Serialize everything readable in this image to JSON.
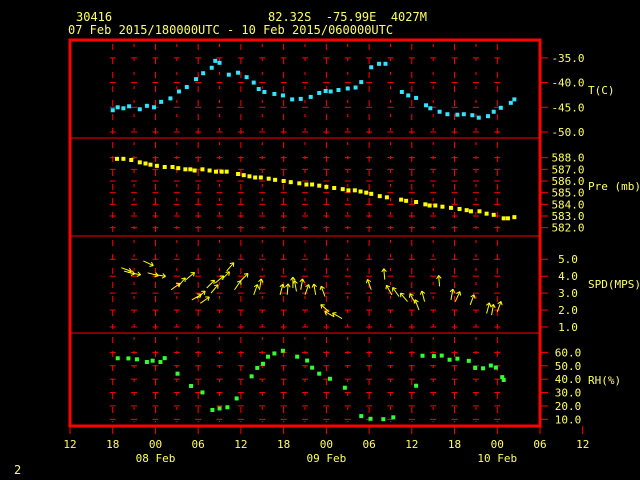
{
  "header": {
    "station": "30416",
    "location": "82.32S  -75.99E  4027M",
    "period": "07 Feb 2015/180000UTC - 10 Feb 2015/060000UTC"
  },
  "footer": {
    "page_number": "2"
  },
  "colors": {
    "frame": "#ff0000",
    "grid": "#ff0000",
    "text": "#ffff66",
    "temperature": "#33e5ff",
    "pressure": "#ffff00",
    "wind": "#ffff00",
    "humidity": "#33ff33"
  },
  "chart_data": {
    "type": "scatter",
    "x_unit": "hours since 07 Feb 2015 12 UTC",
    "x_range": [
      0,
      66
    ],
    "x_tick_labels": [
      "12",
      "18",
      "00",
      "06",
      "12",
      "18",
      "00",
      "06",
      "12",
      "18",
      "00",
      "06",
      "12"
    ],
    "date_labels": [
      "08 Feb",
      "09 Feb",
      "10 Feb"
    ],
    "panels": [
      {
        "id": "temperature",
        "label": "T(C)",
        "ylim": [
          -50,
          -33
        ],
        "ticks": [
          "-35.0",
          "-40.0",
          "-45.0",
          "-50.0"
        ],
        "series": [
          {
            "x": 6.0,
            "y": -45.6
          },
          {
            "x": 6.7,
            "y": -45.0
          },
          {
            "x": 7.5,
            "y": -45.2
          },
          {
            "x": 8.3,
            "y": -44.8
          },
          {
            "x": 9.8,
            "y": -45.4
          },
          {
            "x": 10.8,
            "y": -44.7
          },
          {
            "x": 11.8,
            "y": -45.0
          },
          {
            "x": 12.8,
            "y": -43.9
          },
          {
            "x": 14.1,
            "y": -43.2
          },
          {
            "x": 15.3,
            "y": -41.8
          },
          {
            "x": 16.4,
            "y": -40.9
          },
          {
            "x": 17.7,
            "y": -39.3
          },
          {
            "x": 18.7,
            "y": -38.1
          },
          {
            "x": 19.9,
            "y": -37.0
          },
          {
            "x": 20.4,
            "y": -35.6
          },
          {
            "x": 21.0,
            "y": -36.0
          },
          {
            "x": 22.3,
            "y": -38.4
          },
          {
            "x": 23.6,
            "y": -38.0
          },
          {
            "x": 24.8,
            "y": -38.9
          },
          {
            "x": 25.8,
            "y": -40.0
          },
          {
            "x": 26.5,
            "y": -41.3
          },
          {
            "x": 27.3,
            "y": -41.9
          },
          {
            "x": 28.7,
            "y": -42.3
          },
          {
            "x": 29.9,
            "y": -42.6
          },
          {
            "x": 31.2,
            "y": -43.4
          },
          {
            "x": 32.4,
            "y": -43.3
          },
          {
            "x": 33.8,
            "y": -42.9
          },
          {
            "x": 35.0,
            "y": -42.1
          },
          {
            "x": 35.9,
            "y": -41.7
          },
          {
            "x": 36.6,
            "y": -41.8
          },
          {
            "x": 37.7,
            "y": -41.5
          },
          {
            "x": 39.0,
            "y": -41.2
          },
          {
            "x": 40.1,
            "y": -41.0
          },
          {
            "x": 40.9,
            "y": -39.9
          },
          {
            "x": 42.3,
            "y": -36.9
          },
          {
            "x": 43.4,
            "y": -36.2
          },
          {
            "x": 44.3,
            "y": -36.2
          },
          {
            "x": 46.6,
            "y": -41.9
          },
          {
            "x": 47.5,
            "y": -42.6
          },
          {
            "x": 48.6,
            "y": -43.1
          },
          {
            "x": 50.0,
            "y": -44.6
          },
          {
            "x": 50.6,
            "y": -45.2
          },
          {
            "x": 51.9,
            "y": -45.9
          },
          {
            "x": 53.0,
            "y": -46.4
          },
          {
            "x": 54.4,
            "y": -46.5
          },
          {
            "x": 55.3,
            "y": -46.4
          },
          {
            "x": 56.5,
            "y": -46.6
          },
          {
            "x": 57.4,
            "y": -47.1
          },
          {
            "x": 58.7,
            "y": -46.8
          },
          {
            "x": 59.5,
            "y": -45.9
          },
          {
            "x": 60.5,
            "y": -45.1
          },
          {
            "x": 61.9,
            "y": -44.1
          },
          {
            "x": 62.4,
            "y": -43.4
          }
        ]
      },
      {
        "id": "pressure",
        "label": "Pre (mb)",
        "ylim": [
          581.8,
          589.0
        ],
        "ticks": [
          "588.0",
          "587.0",
          "586.0",
          "585.0",
          "584.0",
          "583.0",
          "582.0"
        ],
        "series": [
          {
            "x": 6.6,
            "y": 587.9
          },
          {
            "x": 7.5,
            "y": 587.9
          },
          {
            "x": 8.6,
            "y": 587.8
          },
          {
            "x": 9.8,
            "y": 587.6
          },
          {
            "x": 10.6,
            "y": 587.5
          },
          {
            "x": 11.3,
            "y": 587.4
          },
          {
            "x": 12.2,
            "y": 587.3
          },
          {
            "x": 13.3,
            "y": 587.2
          },
          {
            "x": 14.4,
            "y": 587.2
          },
          {
            "x": 15.2,
            "y": 587.1
          },
          {
            "x": 16.2,
            "y": 587.0
          },
          {
            "x": 16.9,
            "y": 587.0
          },
          {
            "x": 17.5,
            "y": 586.9
          },
          {
            "x": 18.6,
            "y": 587.0
          },
          {
            "x": 19.6,
            "y": 586.9
          },
          {
            "x": 20.5,
            "y": 586.8
          },
          {
            "x": 21.3,
            "y": 586.8
          },
          {
            "x": 22.0,
            "y": 586.8
          },
          {
            "x": 23.6,
            "y": 586.6
          },
          {
            "x": 24.4,
            "y": 586.5
          },
          {
            "x": 25.2,
            "y": 586.4
          },
          {
            "x": 26.0,
            "y": 586.3
          },
          {
            "x": 26.8,
            "y": 586.3
          },
          {
            "x": 27.9,
            "y": 586.2
          },
          {
            "x": 28.8,
            "y": 586.1
          },
          {
            "x": 30.0,
            "y": 586.0
          },
          {
            "x": 31.0,
            "y": 585.9
          },
          {
            "x": 32.2,
            "y": 585.8
          },
          {
            "x": 33.2,
            "y": 585.7
          },
          {
            "x": 34.0,
            "y": 585.7
          },
          {
            "x": 35.0,
            "y": 585.6
          },
          {
            "x": 36.0,
            "y": 585.5
          },
          {
            "x": 37.1,
            "y": 585.4
          },
          {
            "x": 38.3,
            "y": 585.3
          },
          {
            "x": 39.1,
            "y": 585.2
          },
          {
            "x": 40.0,
            "y": 585.2
          },
          {
            "x": 40.8,
            "y": 585.1
          },
          {
            "x": 41.6,
            "y": 585.0
          },
          {
            "x": 42.3,
            "y": 584.9
          },
          {
            "x": 43.5,
            "y": 584.7
          },
          {
            "x": 44.5,
            "y": 584.6
          },
          {
            "x": 46.5,
            "y": 584.4
          },
          {
            "x": 47.2,
            "y": 584.3
          },
          {
            "x": 48.6,
            "y": 584.2
          },
          {
            "x": 49.9,
            "y": 584.0
          },
          {
            "x": 50.5,
            "y": 583.9
          },
          {
            "x": 51.3,
            "y": 583.9
          },
          {
            "x": 52.3,
            "y": 583.8
          },
          {
            "x": 53.5,
            "y": 583.7
          },
          {
            "x": 54.7,
            "y": 583.6
          },
          {
            "x": 55.7,
            "y": 583.5
          },
          {
            "x": 56.3,
            "y": 583.4
          },
          {
            "x": 57.5,
            "y": 583.4
          },
          {
            "x": 58.5,
            "y": 583.2
          },
          {
            "x": 59.5,
            "y": 583.1
          },
          {
            "x": 60.9,
            "y": 582.8
          },
          {
            "x": 61.5,
            "y": 582.8
          },
          {
            "x": 62.4,
            "y": 582.9
          }
        ]
      },
      {
        "id": "wind",
        "label": "SPD(MPS)",
        "ylim": [
          1.0,
          5.9
        ],
        "ticks": [
          "5.0",
          "4.0",
          "3.0",
          "2.0",
          "1.0"
        ],
        "series": [
          {
            "x": 7.2,
            "y": 4.5,
            "dir_deg": 20
          },
          {
            "x": 7.6,
            "y": 4.3,
            "dir_deg": 15
          },
          {
            "x": 8.4,
            "y": 4.2,
            "dir_deg": 10
          },
          {
            "x": 10.3,
            "y": 4.9,
            "dir_deg": 25
          },
          {
            "x": 10.9,
            "y": 4.2,
            "dir_deg": 15
          },
          {
            "x": 11.9,
            "y": 4.1,
            "dir_deg": 10
          },
          {
            "x": 14.2,
            "y": 3.2,
            "dir_deg": -35
          },
          {
            "x": 15.2,
            "y": 3.4,
            "dir_deg": -50
          },
          {
            "x": 16.3,
            "y": 3.8,
            "dir_deg": -40
          },
          {
            "x": 17.1,
            "y": 2.6,
            "dir_deg": -30
          },
          {
            "x": 17.8,
            "y": 2.7,
            "dir_deg": -40
          },
          {
            "x": 18.3,
            "y": 2.4,
            "dir_deg": -35
          },
          {
            "x": 19.2,
            "y": 3.3,
            "dir_deg": -45
          },
          {
            "x": 19.8,
            "y": 3.0,
            "dir_deg": -50
          },
          {
            "x": 20.4,
            "y": 3.6,
            "dir_deg": -40
          },
          {
            "x": 21.3,
            "y": 3.8,
            "dir_deg": -45
          },
          {
            "x": 22.0,
            "y": 4.3,
            "dir_deg": -50
          },
          {
            "x": 23.1,
            "y": 3.2,
            "dir_deg": -55
          },
          {
            "x": 23.9,
            "y": 3.7,
            "dir_deg": -45
          },
          {
            "x": 25.8,
            "y": 2.9,
            "dir_deg": -70
          },
          {
            "x": 26.6,
            "y": 3.2,
            "dir_deg": -80
          },
          {
            "x": 29.5,
            "y": 2.9,
            "dir_deg": -75
          },
          {
            "x": 30.5,
            "y": 2.9,
            "dir_deg": -85
          },
          {
            "x": 31.3,
            "y": 3.3,
            "dir_deg": -90
          },
          {
            "x": 31.8,
            "y": 3.1,
            "dir_deg": -100
          },
          {
            "x": 32.4,
            "y": 3.2,
            "dir_deg": -80
          },
          {
            "x": 33.0,
            "y": 2.9,
            "dir_deg": -70
          },
          {
            "x": 34.5,
            "y": 2.9,
            "dir_deg": -100
          },
          {
            "x": 35.8,
            "y": 2.8,
            "dir_deg": -110
          },
          {
            "x": 36.4,
            "y": 1.9,
            "dir_deg": -140
          },
          {
            "x": 37.1,
            "y": 1.6,
            "dir_deg": -150
          },
          {
            "x": 38.2,
            "y": 1.5,
            "dir_deg": -150
          },
          {
            "x": 42.3,
            "y": 3.2,
            "dir_deg": -110
          },
          {
            "x": 44.2,
            "y": 3.8,
            "dir_deg": -95
          },
          {
            "x": 45.2,
            "y": 2.9,
            "dir_deg": -120
          },
          {
            "x": 46.2,
            "y": 2.8,
            "dir_deg": -125
          },
          {
            "x": 47.4,
            "y": 2.5,
            "dir_deg": -130
          },
          {
            "x": 48.5,
            "y": 2.4,
            "dir_deg": -120
          },
          {
            "x": 49.0,
            "y": 2.0,
            "dir_deg": -110
          },
          {
            "x": 49.8,
            "y": 2.5,
            "dir_deg": -105
          },
          {
            "x": 51.9,
            "y": 3.4,
            "dir_deg": -95
          },
          {
            "x": 53.5,
            "y": 2.6,
            "dir_deg": -80
          },
          {
            "x": 54.1,
            "y": 2.5,
            "dir_deg": -65
          },
          {
            "x": 56.2,
            "y": 2.3,
            "dir_deg": -70
          },
          {
            "x": 58.5,
            "y": 1.8,
            "dir_deg": -75
          },
          {
            "x": 59.2,
            "y": 1.7,
            "dir_deg": -80
          },
          {
            "x": 60.0,
            "y": 1.9,
            "dir_deg": -70
          }
        ]
      },
      {
        "id": "humidity",
        "label": "RH(%)",
        "ylim": [
          8,
          70
        ],
        "ticks": [
          "60.0",
          "50.0",
          "40.0",
          "30.0",
          "20.0",
          "10.0"
        ],
        "series": [
          {
            "x": 6.7,
            "y": 55.6
          },
          {
            "x": 8.2,
            "y": 55.5
          },
          {
            "x": 9.4,
            "y": 54.8
          },
          {
            "x": 10.8,
            "y": 52.8
          },
          {
            "x": 11.6,
            "y": 53.8
          },
          {
            "x": 12.7,
            "y": 52.8
          },
          {
            "x": 13.3,
            "y": 55.7
          },
          {
            "x": 15.1,
            "y": 44.1
          },
          {
            "x": 17.0,
            "y": 34.9
          },
          {
            "x": 18.6,
            "y": 30.1
          },
          {
            "x": 20.0,
            "y": 17.0
          },
          {
            "x": 21.0,
            "y": 18.1
          },
          {
            "x": 22.1,
            "y": 19.0
          },
          {
            "x": 23.4,
            "y": 25.6
          },
          {
            "x": 25.5,
            "y": 42.1
          },
          {
            "x": 26.3,
            "y": 48.4
          },
          {
            "x": 27.1,
            "y": 51.5
          },
          {
            "x": 27.8,
            "y": 56.8
          },
          {
            "x": 28.7,
            "y": 59.2
          },
          {
            "x": 29.9,
            "y": 61.2
          },
          {
            "x": 31.9,
            "y": 56.8
          },
          {
            "x": 33.3,
            "y": 53.9
          },
          {
            "x": 34.0,
            "y": 48.6
          },
          {
            "x": 35.0,
            "y": 44.1
          },
          {
            "x": 36.5,
            "y": 40.3
          },
          {
            "x": 38.6,
            "y": 33.6
          },
          {
            "x": 40.9,
            "y": 12.4
          },
          {
            "x": 42.2,
            "y": 10.4
          },
          {
            "x": 44.0,
            "y": 10.1
          },
          {
            "x": 45.4,
            "y": 11.5
          },
          {
            "x": 48.6,
            "y": 35.1
          },
          {
            "x": 49.5,
            "y": 57.5
          },
          {
            "x": 51.1,
            "y": 57.2
          },
          {
            "x": 52.2,
            "y": 57.6
          },
          {
            "x": 53.3,
            "y": 54.5
          },
          {
            "x": 54.4,
            "y": 55.3
          },
          {
            "x": 56.0,
            "y": 53.7
          },
          {
            "x": 56.9,
            "y": 48.4
          },
          {
            "x": 58.0,
            "y": 48.1
          },
          {
            "x": 59.1,
            "y": 50.2
          },
          {
            "x": 59.8,
            "y": 48.6
          },
          {
            "x": 60.7,
            "y": 41.5
          },
          {
            "x": 60.9,
            "y": 39.4
          }
        ]
      }
    ]
  }
}
